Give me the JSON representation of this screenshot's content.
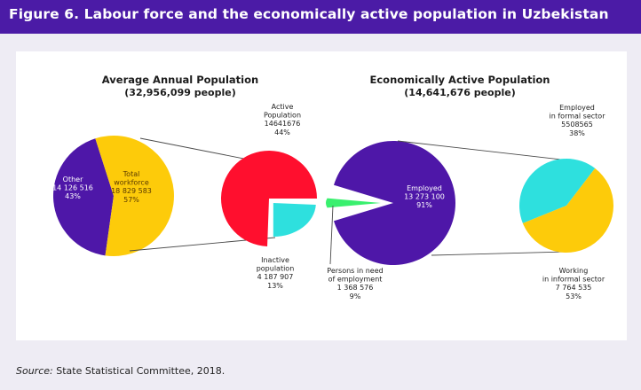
{
  "figure": {
    "title": "Figure 6. Labour force and the economically active population in Uzbekistan",
    "source_prefix": "Source:",
    "source_text": " State Statistical Committee, 2018."
  },
  "colors": {
    "banner": "#4b1ba6",
    "purple": "#4e17a8",
    "yellow": "#fdcb0a",
    "red": "#ff0f2e",
    "cyan": "#2ee0de",
    "green": "#39f06e",
    "connector": "#4a4a4a"
  },
  "chart_data": [
    {
      "type": "pie",
      "title": "Average Annual Population",
      "subtitle": "(32,956,099 people)",
      "slices": [
        {
          "name": "Other",
          "value": 14126516,
          "percent": "43%",
          "value_label": "14 126 516",
          "color": "#4e17a8"
        },
        {
          "name": "Total workforce",
          "name_lines": [
            "Total",
            "workforce"
          ],
          "value": 18829583,
          "percent": "57%",
          "value_label": "18 829 583",
          "color": "#fdcb0a"
        }
      ]
    },
    {
      "type": "pie",
      "title": "",
      "slices": [
        {
          "name": "Active Population",
          "name_lines": [
            "Active",
            "Population"
          ],
          "value": 14641676,
          "percent": "44%",
          "value_label": "14641676",
          "color": "#ff0f2e"
        },
        {
          "name": "Inactive population",
          "name_lines": [
            "Inactive",
            "population"
          ],
          "value": 4187907,
          "percent": "13%",
          "value_label": "4 187 907",
          "color": "#2ee0de"
        }
      ]
    },
    {
      "type": "pie",
      "title": "Economically Active Population",
      "subtitle": "(14,641,676 people)",
      "slices": [
        {
          "name": "Employed",
          "value": 13273100,
          "percent": "91%",
          "value_label": "13 273 100",
          "color": "#4e17a8"
        },
        {
          "name": "Persons in need of employment",
          "name_lines": [
            "Persons in need",
            "of employment"
          ],
          "value": 1368576,
          "percent": "9%",
          "value_label": "1 368 576",
          "color": "#39f06e"
        }
      ]
    },
    {
      "type": "pie",
      "title": "",
      "slices": [
        {
          "name": "Employed in formal sector",
          "name_lines": [
            "Employed",
            "in formal sector"
          ],
          "value": 5508565,
          "percent": "38%",
          "value_label": "5508565",
          "color": "#2ee0de"
        },
        {
          "name": "Working in informal sector",
          "name_lines": [
            "Working",
            "in informal sector"
          ],
          "value": 7764535,
          "percent": "53%",
          "value_label": "7 764 535",
          "color": "#fdcb0a"
        }
      ]
    }
  ]
}
